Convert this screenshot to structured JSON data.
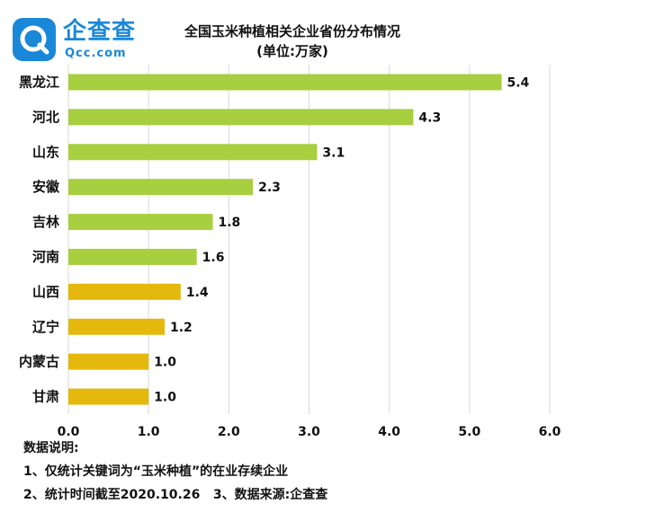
{
  "logo": {
    "name": "企查查",
    "sub": "Qcc.com"
  },
  "title": "全国玉米种植相关企业省份分布情况",
  "subtitle": "(单位:万家)",
  "colors": {
    "green": "#a7cf3f",
    "yellow": "#e4b80c",
    "grid": "#d9d9d9",
    "brand": "#1a88d8"
  },
  "chart_data": {
    "type": "bar",
    "orientation": "horizontal",
    "categories": [
      "黑龙江",
      "河北",
      "山东",
      "安徽",
      "吉林",
      "河南",
      "山西",
      "辽宁",
      "内蒙古",
      "甘肃"
    ],
    "values": [
      5.4,
      4.3,
      3.1,
      2.3,
      1.8,
      1.6,
      1.4,
      1.2,
      1.0,
      1.0
    ],
    "value_labels": [
      "5.4",
      "4.3",
      "3.1",
      "2.3",
      "1.8",
      "1.6",
      "1.4",
      "1.2",
      "1.0",
      "1.0"
    ],
    "bar_colors": [
      "green",
      "green",
      "green",
      "green",
      "green",
      "green",
      "yellow",
      "yellow",
      "yellow",
      "yellow"
    ],
    "xlim": [
      0,
      6
    ],
    "xticks": [
      "0.0",
      "1.0",
      "2.0",
      "3.0",
      "4.0",
      "5.0",
      "6.0"
    ],
    "grid": true
  },
  "notes": {
    "heading": "数据说明:",
    "line1": "1、仅统计关键词为“玉米种植”的在业存续企业",
    "line2": "2、统计时间截至2020.10.26   3、数据来源:企查查"
  }
}
